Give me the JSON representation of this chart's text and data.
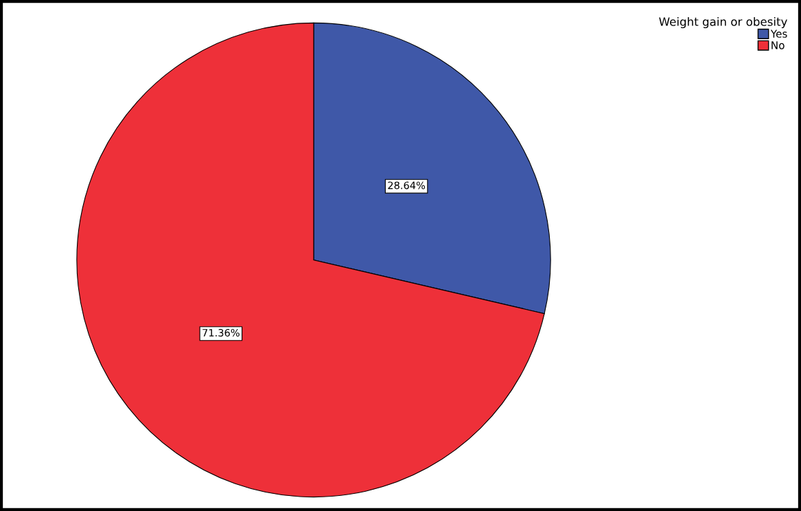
{
  "chart_data": {
    "type": "pie",
    "legend_title": "Weight gain or obesity",
    "categories": [
      "Yes",
      "No"
    ],
    "values": [
      28.64,
      71.36
    ],
    "colors": [
      "#3f58a8",
      "#ee3039"
    ],
    "value_labels": [
      "28.64%",
      "71.36%"
    ],
    "legend": "top right"
  }
}
